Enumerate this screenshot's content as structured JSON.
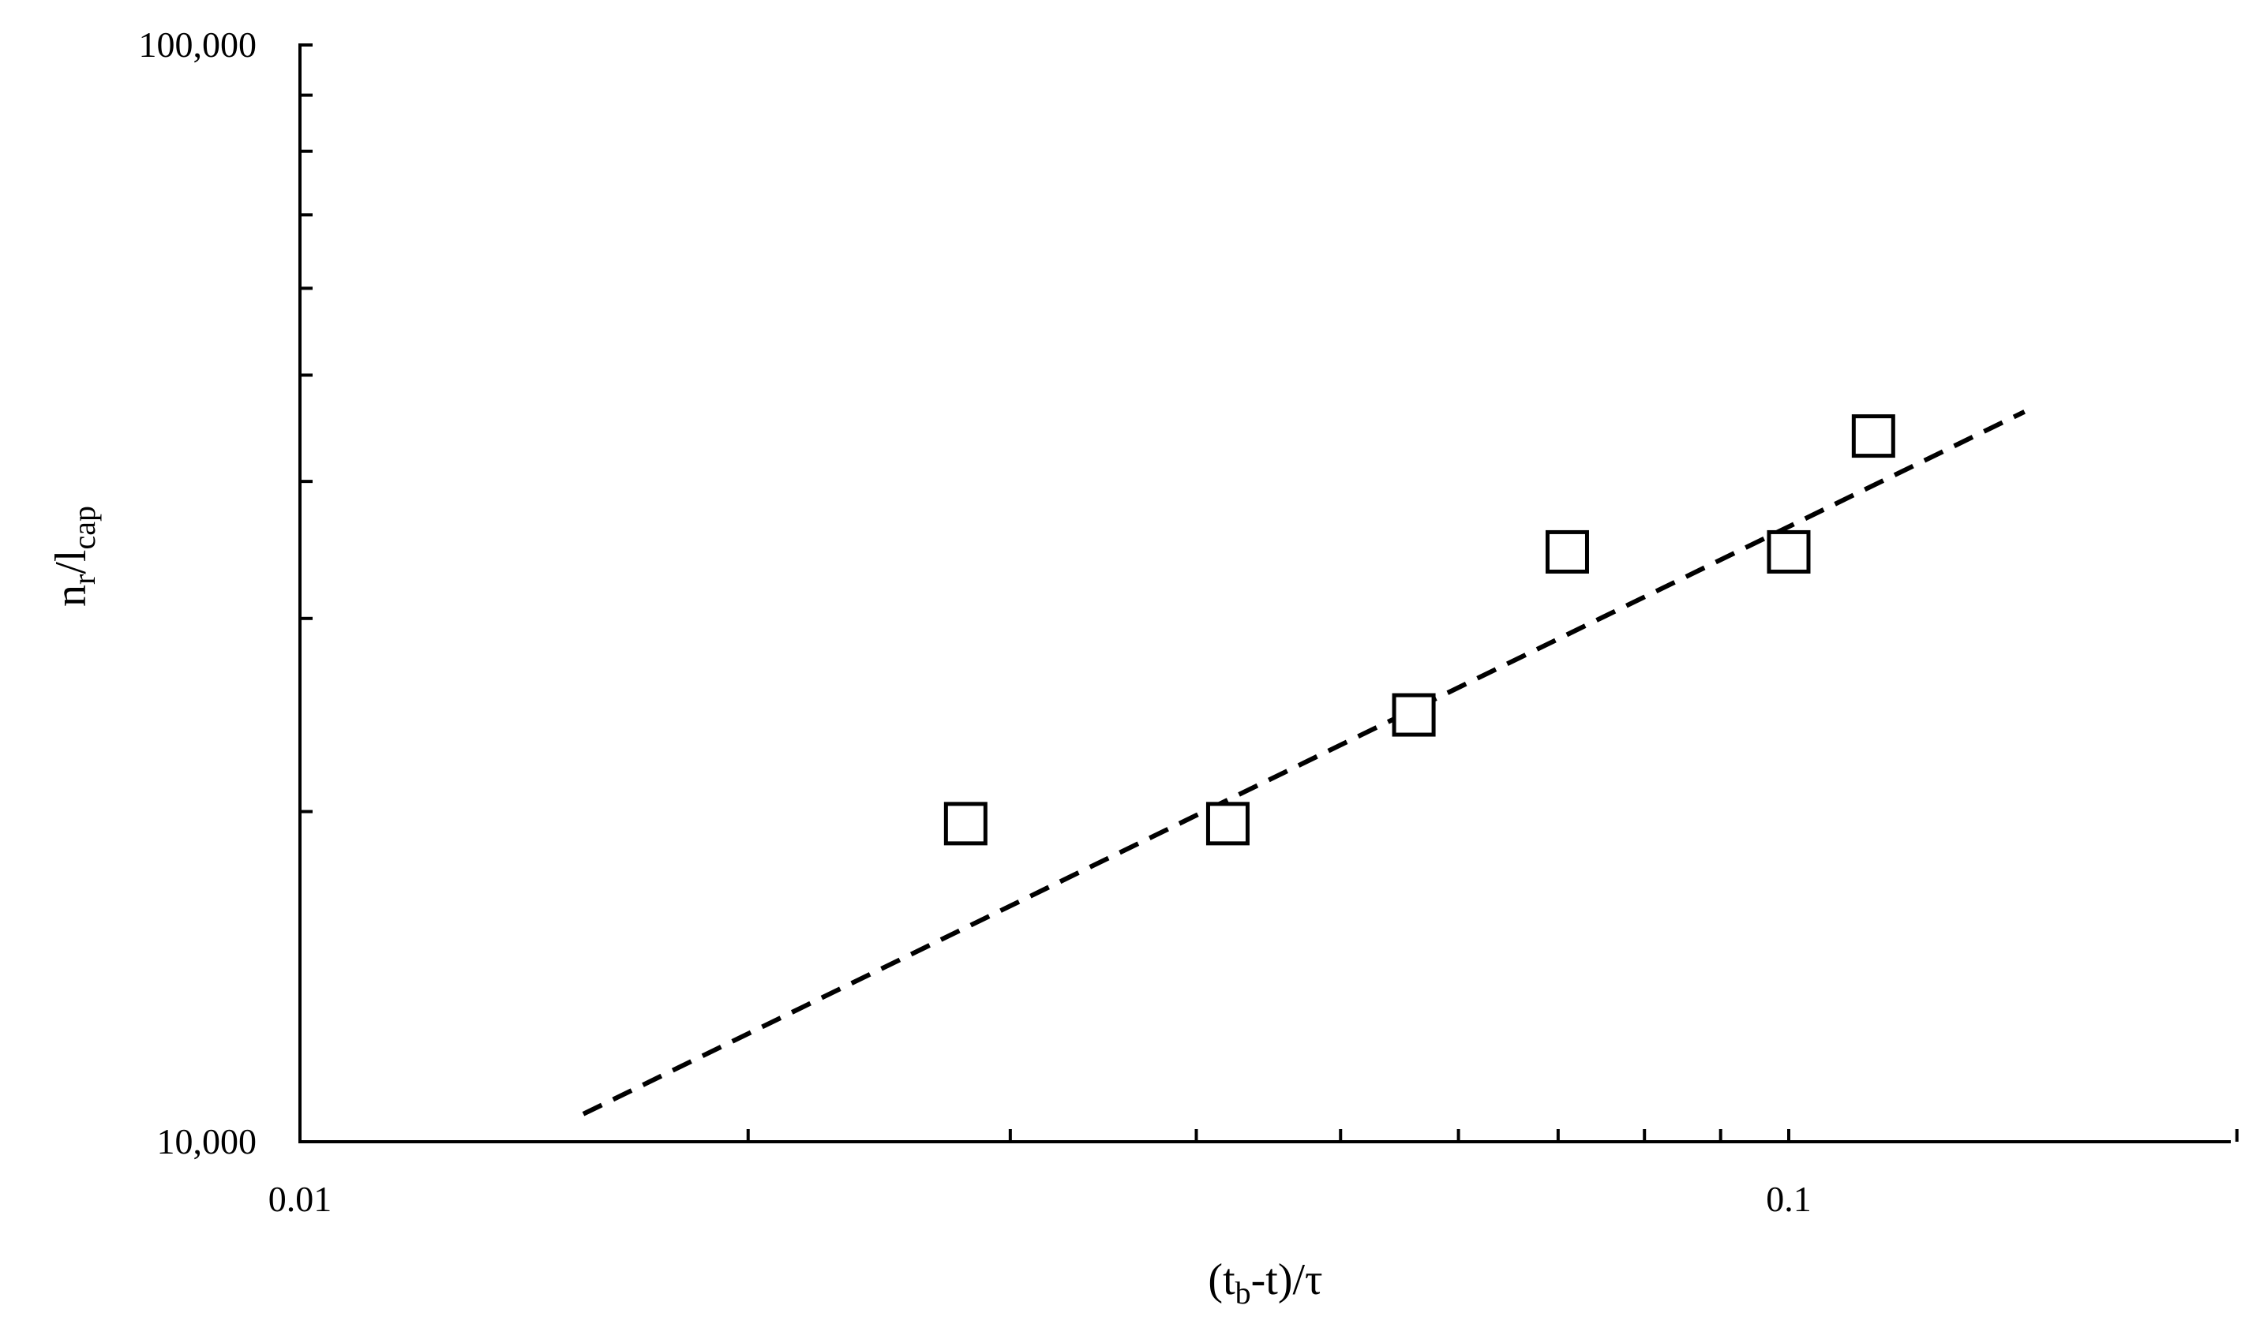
{
  "chart_data": {
    "type": "scatter",
    "title": "",
    "xlabel": {
      "main": "(t",
      "sub": "b",
      "rest": "-t)/τ"
    },
    "ylabel": {
      "main": "n",
      "sub": "r",
      "mid": "/l",
      "sub2": "cap"
    },
    "xscale": "log",
    "yscale": "log",
    "xlim": [
      0.01,
      0.2
    ],
    "ylim": [
      10000,
      100000
    ],
    "xticks": [
      {
        "value": 0.01,
        "label": "0.01"
      },
      {
        "value": 0.1,
        "label": "0.1"
      }
    ],
    "yticks": [
      {
        "value": 10000,
        "label": "10,000"
      },
      {
        "value": 100000,
        "label": "100,000"
      }
    ],
    "x_minor_ticks": [
      0.02,
      0.03,
      0.04,
      0.05,
      0.06,
      0.07,
      0.08,
      0.09,
      0.2
    ],
    "y_minor_ticks": [
      20000,
      30000,
      40000,
      50000,
      60000,
      70000,
      80000,
      90000
    ],
    "grid": false,
    "series": [
      {
        "marker": "open-square",
        "points": [
          {
            "x": 0.028,
            "y": 19500
          },
          {
            "x": 0.042,
            "y": 19500
          },
          {
            "x": 0.056,
            "y": 24500
          },
          {
            "x": 0.071,
            "y": 34500
          },
          {
            "x": 0.1,
            "y": 34500
          },
          {
            "x": 0.114,
            "y": 44000
          }
        ]
      },
      {
        "line": "dashed",
        "points": [
          {
            "x": 0.0155,
            "y": 10600
          },
          {
            "x": 0.144,
            "y": 46300
          }
        ]
      }
    ]
  }
}
